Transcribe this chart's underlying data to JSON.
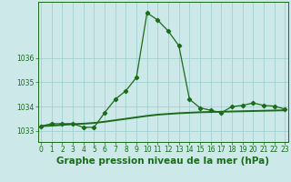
{
  "hours": [
    0,
    1,
    2,
    3,
    4,
    5,
    6,
    7,
    8,
    9,
    10,
    11,
    12,
    13,
    14,
    15,
    16,
    17,
    18,
    19,
    20,
    21,
    22,
    23
  ],
  "pressure": [
    1033.2,
    1033.3,
    1033.3,
    1033.3,
    1033.15,
    1033.15,
    1033.75,
    1034.3,
    1034.65,
    1035.2,
    1037.85,
    1037.55,
    1037.1,
    1036.5,
    1034.3,
    1033.95,
    1033.85,
    1033.75,
    1034.0,
    1034.05,
    1034.15,
    1034.05,
    1034.02,
    1033.9
  ],
  "smooth": [
    1033.2,
    1033.22,
    1033.25,
    1033.28,
    1033.3,
    1033.33,
    1033.38,
    1033.44,
    1033.5,
    1033.56,
    1033.62,
    1033.67,
    1033.7,
    1033.73,
    1033.75,
    1033.77,
    1033.78,
    1033.79,
    1033.8,
    1033.81,
    1033.82,
    1033.83,
    1033.84,
    1033.85
  ],
  "bg_color": "#cce8e8",
  "line_color": "#1a6b1a",
  "grid_color": "#99cccc",
  "ylabel_ticks": [
    1033,
    1034,
    1035,
    1036
  ],
  "ylim": [
    1032.55,
    1038.3
  ],
  "xlim": [
    -0.3,
    23.3
  ],
  "xlabel": "Graphe pression niveau de la mer (hPa)",
  "tick_fontsize": 5.5,
  "xlabel_fontsize": 7.5
}
